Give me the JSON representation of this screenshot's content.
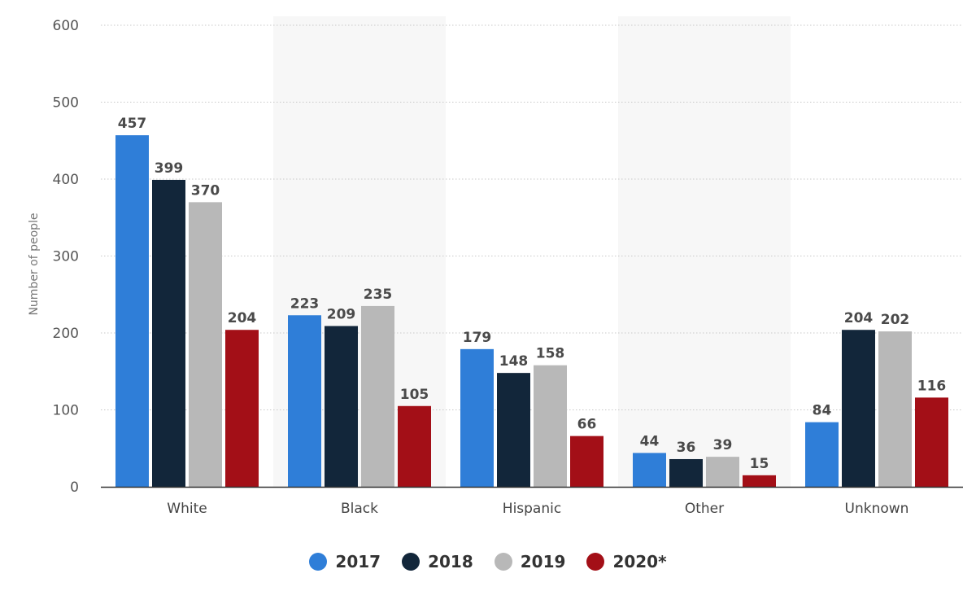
{
  "chart_data": {
    "type": "bar",
    "title": "",
    "xlabel": "",
    "ylabel": "Number of people",
    "ylim": [
      0,
      600
    ],
    "yticks": [
      0,
      100,
      200,
      300,
      400,
      500,
      600
    ],
    "grid": true,
    "legend_position": "bottom-center",
    "categories": [
      "White",
      "Black",
      "Hispanic",
      "Other",
      "Unknown"
    ],
    "series": [
      {
        "name": "2017",
        "color": "#2f7ed8",
        "values": [
          457,
          223,
          179,
          44,
          84
        ]
      },
      {
        "name": "2018",
        "color": "#12263a",
        "values": [
          399,
          209,
          148,
          36,
          204
        ]
      },
      {
        "name": "2019",
        "color": "#b8b8b8",
        "values": [
          370,
          235,
          158,
          39,
          202
        ]
      },
      {
        "name": "2020*",
        "color": "#a30f17",
        "values": [
          204,
          105,
          66,
          15,
          116
        ]
      }
    ]
  }
}
